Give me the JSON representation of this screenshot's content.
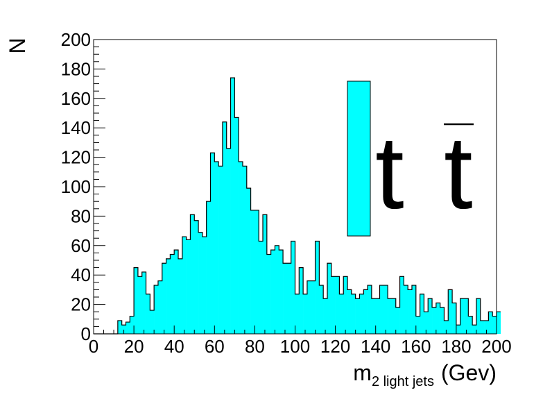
{
  "chart_data": {
    "type": "bar",
    "bin_width": 2,
    "x_start": 0,
    "values": [
      0,
      0,
      0,
      0,
      0,
      0,
      9,
      6,
      8,
      12,
      45,
      39,
      42,
      27,
      16,
      33,
      36,
      48,
      51,
      54,
      57,
      51,
      66,
      64,
      81,
      77,
      69,
      66,
      90,
      123,
      117,
      114,
      144,
      126,
      174,
      147,
      117,
      114,
      99,
      84,
      84,
      63,
      81,
      54,
      57,
      60,
      57,
      48,
      48,
      63,
      27,
      45,
      27,
      36,
      36,
      63,
      33,
      24,
      48,
      39,
      39,
      27,
      39,
      30,
      27,
      24,
      27,
      30,
      33,
      24,
      24,
      33,
      33,
      24,
      24,
      18,
      39,
      33,
      30,
      33,
      12,
      27,
      15,
      24,
      18,
      21,
      18,
      9,
      30,
      21,
      6,
      24,
      24,
      12,
      6,
      24,
      9,
      9,
      15,
      12,
      15
    ],
    "xlim": [
      0,
      200
    ],
    "ylim": [
      0,
      200
    ],
    "x_ticks": [
      "0",
      "20",
      "40",
      "60",
      "80",
      "100",
      "120",
      "140",
      "160",
      "180",
      "200"
    ],
    "y_ticks": [
      "0",
      "20",
      "40",
      "60",
      "80",
      "100",
      "120",
      "140",
      "160",
      "180",
      "200"
    ],
    "xlabel_main": "m",
    "xlabel_sub": "2 light jets",
    "xlabel_unit": "(Gev)",
    "ylabel": "N",
    "fill_color": "#00ffff",
    "line_color": "#000000",
    "legend": {
      "swatch_color": "#00ffff",
      "label_left": "t",
      "label_right": "t"
    }
  }
}
